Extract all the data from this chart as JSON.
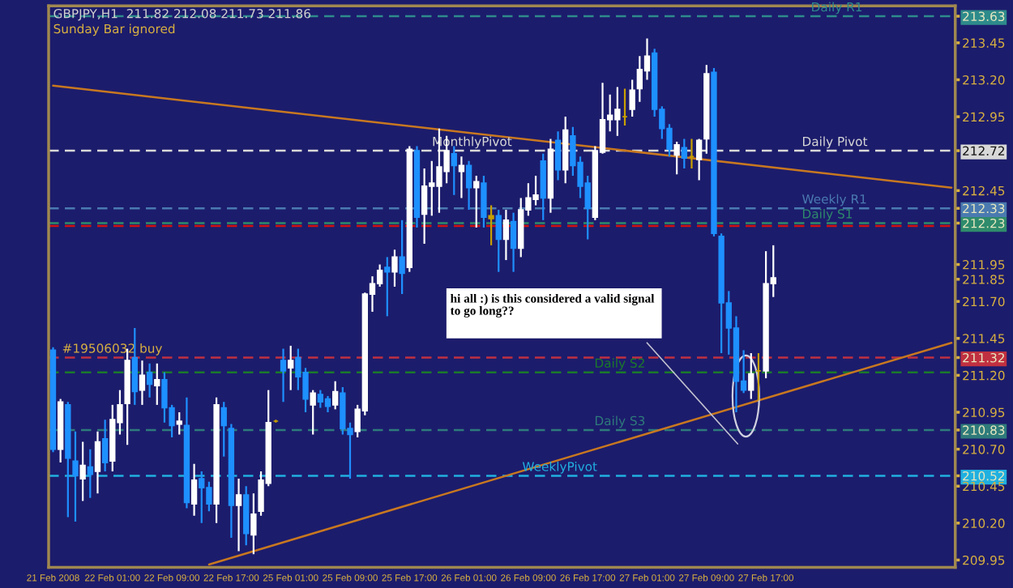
{
  "chart_data": {
    "type": "candlestick",
    "title": "GBPJPY,H1  211.82 212.08 211.73 211.86",
    "annotations": [
      "Sunday Bar ignored",
      "hi all :) is this considered a valid signal to go long??",
      "MonthlyPivot"
    ],
    "categories": [
      "21 Feb 2008",
      null,
      null,
      null,
      null,
      null,
      null,
      null,
      "22 Feb 01:00",
      null,
      null,
      null,
      null,
      null,
      null,
      null,
      "22 Feb 09:00",
      null,
      null,
      null,
      null,
      null,
      null,
      null,
      "22 Feb 17:00",
      null,
      null,
      null,
      null,
      null,
      null,
      null,
      "25 Feb 01:00",
      null,
      null,
      null,
      null,
      null,
      null,
      null,
      "25 Feb 09:00",
      null,
      null,
      null,
      null,
      null,
      null,
      null,
      "25 Feb 17:00",
      null,
      null,
      null,
      null,
      null,
      null,
      null,
      "26 Feb 01:00",
      null,
      null,
      null,
      null,
      null,
      null,
      null,
      "26 Feb 09:00",
      null,
      null,
      null,
      null,
      null,
      null,
      null,
      "26 Feb 17:00",
      null,
      null,
      null,
      null,
      null,
      null,
      null,
      "27 Feb 01:00",
      null,
      null,
      null,
      null,
      null,
      null,
      null,
      "27 Feb 09:00",
      null,
      null,
      null,
      null,
      null,
      null,
      null,
      "27 Feb 17:00",
      null,
      null,
      null,
      null,
      null,
      null,
      null,
      null,
      null,
      null,
      null,
      null,
      null,
      null,
      null,
      null,
      null,
      null,
      null,
      null,
      null,
      null,
      null,
      null,
      null
    ],
    "ohlc": [
      [
        211.37,
        211.39,
        210.68,
        210.7
      ],
      [
        210.7,
        211.04,
        210.61,
        211.02
      ],
      [
        211.0,
        211.02,
        210.24,
        210.64
      ],
      [
        210.62,
        210.82,
        210.21,
        210.52
      ],
      [
        210.5,
        210.75,
        210.35,
        210.59
      ],
      [
        210.58,
        210.7,
        210.37,
        210.53
      ],
      [
        210.55,
        210.82,
        210.4,
        210.75
      ],
      [
        210.77,
        210.9,
        210.55,
        210.61
      ],
      [
        210.62,
        211.0,
        210.55,
        210.9
      ],
      [
        210.88,
        211.1,
        210.8,
        211.0
      ],
      [
        211.01,
        211.38,
        210.73,
        211.3
      ],
      [
        211.32,
        211.52,
        211.0,
        211.09
      ],
      [
        211.1,
        211.3,
        211.0,
        211.2
      ],
      [
        211.22,
        211.28,
        211.05,
        211.14
      ],
      [
        211.13,
        211.28,
        211.0,
        211.17
      ],
      [
        211.17,
        211.22,
        210.88,
        210.98
      ],
      [
        210.98,
        211.0,
        210.78,
        210.86
      ],
      [
        210.87,
        210.95,
        210.8,
        210.89
      ],
      [
        210.86,
        211.05,
        210.3,
        210.34
      ],
      [
        210.33,
        210.6,
        210.25,
        210.49
      ],
      [
        210.5,
        210.55,
        210.2,
        210.44
      ],
      [
        210.44,
        210.48,
        210.28,
        210.33
      ],
      [
        210.33,
        211.05,
        210.2,
        211.0
      ],
      [
        210.98,
        211.02,
        210.65,
        210.86
      ],
      [
        210.84,
        210.87,
        210.1,
        210.32
      ],
      [
        210.32,
        210.5,
        210.01,
        210.39
      ],
      [
        210.39,
        210.45,
        210.05,
        210.13
      ],
      [
        210.12,
        210.4,
        209.99,
        210.26
      ],
      [
        210.28,
        210.55,
        210.25,
        210.49
      ],
      [
        210.47,
        211.1,
        210.45,
        210.88
      ],
      [
        210.89,
        210.9,
        210.88,
        210.89
      ],
      [
        211.3,
        211.38,
        211.02,
        211.23
      ],
      [
        211.25,
        211.4,
        211.1,
        211.3
      ],
      [
        211.32,
        211.38,
        211.1,
        211.19
      ],
      [
        211.22,
        211.25,
        210.95,
        211.04
      ],
      [
        211.0,
        211.1,
        210.8,
        211.08
      ],
      [
        211.07,
        211.1,
        210.98,
        211.02
      ],
      [
        211.04,
        211.06,
        210.95,
        210.99
      ],
      [
        211.0,
        211.16,
        210.97,
        211.09
      ],
      [
        211.08,
        211.12,
        210.8,
        210.84
      ],
      [
        210.84,
        210.88,
        210.5,
        210.8
      ],
      [
        210.82,
        211.0,
        210.78,
        210.97
      ],
      [
        210.96,
        211.76,
        210.93,
        211.75
      ],
      [
        211.75,
        211.87,
        211.63,
        211.82
      ],
      [
        211.82,
        211.95,
        211.8,
        211.91
      ],
      [
        211.93,
        212.0,
        211.6,
        211.9
      ],
      [
        211.9,
        212.05,
        211.8,
        212.0
      ],
      [
        212.0,
        212.25,
        211.75,
        211.89
      ],
      [
        211.93,
        212.75,
        211.9,
        212.73
      ],
      [
        212.72,
        212.75,
        212.2,
        212.27
      ],
      [
        212.29,
        212.6,
        212.09,
        212.48
      ],
      [
        212.48,
        212.65,
        212.28,
        212.5
      ],
      [
        212.48,
        212.87,
        212.3,
        212.61
      ],
      [
        212.58,
        212.82,
        212.5,
        212.72
      ],
      [
        212.7,
        212.75,
        212.42,
        212.62
      ],
      [
        212.58,
        212.68,
        212.4,
        212.62
      ],
      [
        212.62,
        212.65,
        212.32,
        212.47
      ],
      [
        212.47,
        212.55,
        212.2,
        212.51
      ],
      [
        212.5,
        212.55,
        212.2,
        212.27
      ],
      [
        212.28,
        212.35,
        212.08,
        212.26
      ],
      [
        212.28,
        212.32,
        211.9,
        212.12
      ],
      [
        212.12,
        212.32,
        211.98,
        212.25
      ],
      [
        212.24,
        212.3,
        211.9,
        212.06
      ],
      [
        212.06,
        212.4,
        212.0,
        212.32
      ],
      [
        212.32,
        212.5,
        212.28,
        212.4
      ],
      [
        212.39,
        212.55,
        212.35,
        212.42
      ],
      [
        212.65,
        212.7,
        212.25,
        212.4
      ],
      [
        212.4,
        212.8,
        212.3,
        212.73
      ],
      [
        212.79,
        212.85,
        212.52,
        212.59
      ],
      [
        212.59,
        212.95,
        212.5,
        212.86
      ],
      [
        212.82,
        212.88,
        212.55,
        212.62
      ],
      [
        212.64,
        212.68,
        212.4,
        212.48
      ],
      [
        212.5,
        212.55,
        212.12,
        212.33
      ],
      [
        212.27,
        212.75,
        212.25,
        212.72
      ],
      [
        212.71,
        213.18,
        212.7,
        212.93
      ],
      [
        212.93,
        213.1,
        212.85,
        212.96
      ],
      [
        212.93,
        213.15,
        212.82,
        213.0
      ],
      [
        212.95,
        213.14,
        212.89,
        212.95
      ],
      [
        213.0,
        213.2,
        212.95,
        213.13
      ],
      [
        213.14,
        213.36,
        213.05,
        213.27
      ],
      [
        213.26,
        213.48,
        213.2,
        213.36
      ],
      [
        213.38,
        213.41,
        212.95,
        213.0
      ],
      [
        213.0,
        213.02,
        212.8,
        212.87
      ],
      [
        212.87,
        212.9,
        212.68,
        212.73
      ],
      [
        212.69,
        212.78,
        212.56,
        212.76
      ],
      [
        212.74,
        212.8,
        212.6,
        212.67
      ],
      [
        212.68,
        212.8,
        212.6,
        212.68
      ],
      [
        212.66,
        212.8,
        212.52,
        212.79
      ],
      [
        212.8,
        213.3,
        212.7,
        213.24
      ],
      [
        213.25,
        213.28,
        212.14,
        212.16
      ],
      [
        212.14,
        212.16,
        211.35,
        211.69
      ],
      [
        211.69,
        211.77,
        211.34,
        211.52
      ],
      [
        211.52,
        211.6,
        210.95,
        211.16
      ],
      [
        211.16,
        211.37,
        211.08,
        211.1
      ],
      [
        211.1,
        211.35,
        211.04,
        211.21
      ],
      [
        211.23,
        211.35,
        211.03,
        211.23
      ],
      [
        211.23,
        212.04,
        211.18,
        211.82
      ],
      [
        211.82,
        212.08,
        211.73,
        211.86
      ],
      null,
      null,
      null,
      null,
      null,
      null,
      null,
      null,
      null,
      null,
      null,
      null,
      null,
      null,
      null,
      null,
      null,
      null,
      null,
      null,
      null,
      null,
      null,
      null
    ],
    "colors": [
      "#1e90ff",
      "#ffffff",
      "#1e90ff",
      "#1e90ff",
      "#ffffff",
      "#1e90ff",
      "#ffffff",
      "#1e90ff",
      "#ffffff",
      "#ffffff",
      "#ffffff",
      "#1e90ff",
      "#ffffff",
      "#1e90ff",
      "#ffffff",
      "#1e90ff",
      "#1e90ff",
      "#ffffff",
      "#1e90ff",
      "#ffffff",
      "#1e90ff",
      "#1e90ff",
      "#ffffff",
      "#1e90ff",
      "#1e90ff",
      "#ffffff",
      "#1e90ff",
      "#ffffff",
      "#ffffff",
      "#ffffff",
      "#c8a000",
      "#1e90ff",
      "#ffffff",
      "#1e90ff",
      "#1e90ff",
      "#ffffff",
      "#1e90ff",
      "#1e90ff",
      "#ffffff",
      "#1e90ff",
      "#1e90ff",
      "#ffffff",
      "#ffffff",
      "#ffffff",
      "#ffffff",
      "#1e90ff",
      "#ffffff",
      "#1e90ff",
      "#ffffff",
      "#1e90ff",
      "#ffffff",
      "#ffffff",
      "#ffffff",
      "#ffffff",
      "#1e90ff",
      "#ffffff",
      "#1e90ff",
      "#ffffff",
      "#1e90ff",
      "#c8a000",
      "#1e90ff",
      "#ffffff",
      "#1e90ff",
      "#ffffff",
      "#ffffff",
      "#ffffff",
      "#1e90ff",
      "#ffffff",
      "#1e90ff",
      "#ffffff",
      "#1e90ff",
      "#1e90ff",
      "#1e90ff",
      "#ffffff",
      "#ffffff",
      "#ffffff",
      "#ffffff",
      "#c8a000",
      "#ffffff",
      "#ffffff",
      "#ffffff",
      "#1e90ff",
      "#1e90ff",
      "#1e90ff",
      "#ffffff",
      "#1e90ff",
      "#c8a000",
      "#ffffff",
      "#ffffff",
      "#1e90ff",
      "#1e90ff",
      "#1e90ff",
      "#1e90ff",
      "#1e90ff",
      "#ffffff",
      "#c8a000",
      "#ffffff",
      "#ffffff",
      null,
      null,
      null,
      null,
      null,
      null,
      null,
      null,
      null,
      null,
      null,
      null,
      null,
      null,
      null,
      null,
      null,
      null,
      null,
      null,
      null,
      null,
      null,
      null
    ],
    "series": [
      {
        "type": "line",
        "color": "#c87820",
        "values": [
          213.16,
          null,
          null,
          null,
          null,
          null,
          null,
          null,
          null,
          null,
          null,
          null,
          null,
          null,
          null,
          null,
          null,
          null,
          null,
          null,
          null,
          null,
          null,
          null,
          null,
          null,
          null,
          null,
          null,
          null,
          null,
          null,
          null,
          null,
          null,
          null,
          null,
          null,
          null,
          null,
          null,
          null,
          null,
          null,
          null,
          null,
          null,
          null,
          null,
          null,
          null,
          null,
          null,
          null,
          null,
          null,
          null,
          null,
          null,
          null,
          null,
          null,
          null,
          null,
          null,
          null,
          null,
          null,
          null,
          null,
          null,
          null,
          null,
          null,
          null,
          null,
          null,
          null,
          null,
          null,
          null,
          null,
          null,
          null,
          null,
          null,
          null,
          null,
          null,
          null,
          null,
          null,
          null,
          null,
          null,
          null,
          null,
          null,
          null,
          null,
          null,
          null,
          null,
          null,
          null,
          null,
          null,
          null,
          null,
          null,
          null,
          null,
          null,
          null,
          null,
          null,
          null,
          null,
          null,
          null,
          null,
          212.47
        ]
      },
      {
        "type": "line",
        "color": "#c87820",
        "values": [
          null,
          null,
          null,
          null,
          null,
          null,
          null,
          null,
          null,
          null,
          null,
          null,
          null,
          null,
          null,
          null,
          null,
          null,
          null,
          null,
          null,
          209.92,
          null,
          null,
          null,
          null,
          null,
          null,
          null,
          null,
          null,
          null,
          null,
          null,
          null,
          null,
          null,
          null,
          null,
          null,
          null,
          null,
          null,
          null,
          null,
          null,
          null,
          null,
          null,
          null,
          null,
          null,
          null,
          null,
          null,
          null,
          null,
          null,
          null,
          null,
          null,
          null,
          null,
          null,
          null,
          null,
          null,
          null,
          null,
          null,
          null,
          null,
          null,
          null,
          null,
          null,
          null,
          null,
          null,
          null,
          null,
          null,
          null,
          null,
          null,
          null,
          null,
          null,
          null,
          null,
          null,
          null,
          null,
          null,
          null,
          null,
          null,
          null,
          null,
          null,
          null,
          null,
          null,
          null,
          null,
          null,
          null,
          null,
          null,
          null,
          null,
          null,
          null,
          null,
          null,
          null,
          null,
          null,
          null,
          null,
          null,
          211.42
        ]
      }
    ],
    "ref_lines": [
      {
        "axis": "y",
        "value": 213.63,
        "label": "Daily R1",
        "color": "#2e8b8b",
        "line_style": "dashed"
      },
      {
        "axis": "y",
        "value": 212.72,
        "label": "Daily Pivot",
        "color": "#d8d8d8",
        "line_style": "dashed"
      },
      {
        "axis": "y",
        "value": 212.33,
        "label": "Weekly R1",
        "color": "#4a7ab0",
        "line_style": "dashed"
      },
      {
        "axis": "y",
        "value": 212.23,
        "label": "Daily S1",
        "color": "#2e8b6b",
        "line_style": "dashed"
      },
      {
        "axis": "y",
        "value": 212.21,
        "label": null,
        "color": "#d01010",
        "line_style": "dashed"
      },
      {
        "axis": "y",
        "value": 211.32,
        "label": "#19506032 buy",
        "color": "#c03040",
        "line_style": "dashed"
      },
      {
        "axis": "y",
        "value": 211.22,
        "label": "Daily S2",
        "color": "#1a7a2a",
        "line_style": "dashed"
      },
      {
        "axis": "y",
        "value": 210.83,
        "label": "Daily S3",
        "color": "#2e7b7b",
        "line_style": "dashed"
      },
      {
        "axis": "y",
        "value": 210.52,
        "label": "WeeklyPivot",
        "color": "#20b0e0",
        "line_style": "dashed"
      }
    ],
    "ylim": [
      209.9,
      213.7
    ],
    "yticks": [
      213.63,
      213.45,
      {
        "value": 213.2,
        "label": "213.20"
      },
      212.95,
      212.72,
      212.45,
      212.33,
      212.23,
      211.95,
      211.85,
      {
        "value": 211.7,
        "label": "211.70"
      },
      211.45,
      211.32,
      {
        "value": 211.2,
        "label": "211.20"
      },
      210.95,
      210.83,
      {
        "value": 210.7,
        "label": "210.70"
      },
      210.52,
      210.45,
      {
        "value": 210.2,
        "label": "210.20"
      },
      209.95
    ],
    "grid": false,
    "legend": false
  }
}
